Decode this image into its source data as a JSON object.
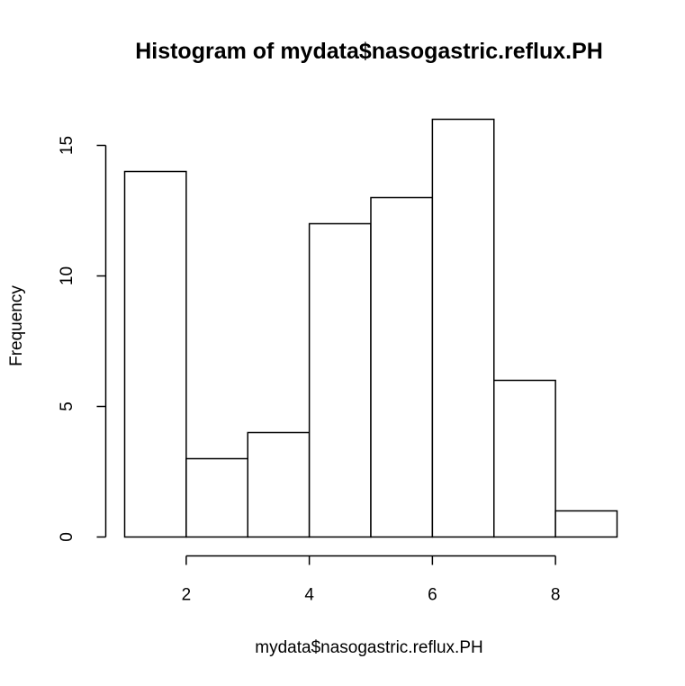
{
  "chart_data": {
    "type": "bar",
    "title": "Histogram of mydata$nasogastric.reflux.PH",
    "xlabel": "mydata$nasogastric.reflux.PH",
    "ylabel": "Frequency",
    "bins": [
      {
        "x0": 1,
        "x1": 2,
        "value": 14
      },
      {
        "x0": 2,
        "x1": 3,
        "value": 3
      },
      {
        "x0": 3,
        "x1": 4,
        "value": 4
      },
      {
        "x0": 4,
        "x1": 5,
        "value": 12
      },
      {
        "x0": 5,
        "x1": 6,
        "value": 13
      },
      {
        "x0": 6,
        "x1": 7,
        "value": 16
      },
      {
        "x0": 7,
        "x1": 8,
        "value": 6
      },
      {
        "x0": 8,
        "x1": 9,
        "value": 1
      }
    ],
    "x_ticks": [
      2,
      4,
      6,
      8
    ],
    "x_tick_labels": [
      "2",
      "4",
      "6",
      "8"
    ],
    "y_ticks": [
      0,
      5,
      10,
      15
    ],
    "y_tick_labels": [
      "0",
      "5",
      "10",
      "15"
    ],
    "xlim": [
      1,
      9
    ],
    "ylim": [
      0,
      16
    ],
    "grid": false,
    "legend": false,
    "colors": {
      "bar_fill": "#ffffff",
      "bar_stroke": "#000000"
    }
  }
}
